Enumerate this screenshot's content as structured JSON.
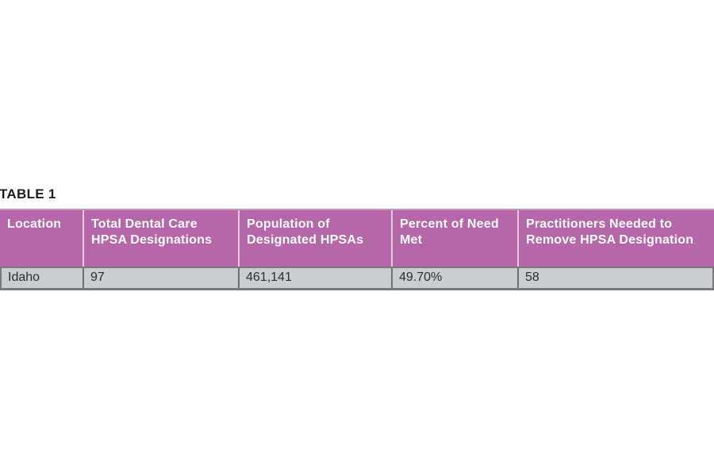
{
  "page": {
    "background": "#ffffff"
  },
  "table": {
    "label": "TABLE 1",
    "colors": {
      "header_bg": "#b567a9",
      "header_top_edge": "#c994c2",
      "header_divider": "#e2cbde",
      "header_text": "#ffffff",
      "row_bg": "#cacdd1",
      "row_outline": "#77797c",
      "row_divider": "#6e7174",
      "row_text": "#2d2d2d",
      "caption_text": "#1d1d1b"
    },
    "columns": [
      {
        "label": "Location"
      },
      {
        "label": "Total Dental Care HPSA Designations"
      },
      {
        "label": "Population of Designated HPSAs"
      },
      {
        "label": "Percent of Need Met"
      },
      {
        "label": "Practitioners Needed to Remove HPSA Designation"
      }
    ],
    "rows": [
      {
        "location": "Idaho",
        "total_designations": "97",
        "population": "461,141",
        "percent_need_met": "49.70%",
        "practitioners_needed": "58"
      }
    ]
  }
}
